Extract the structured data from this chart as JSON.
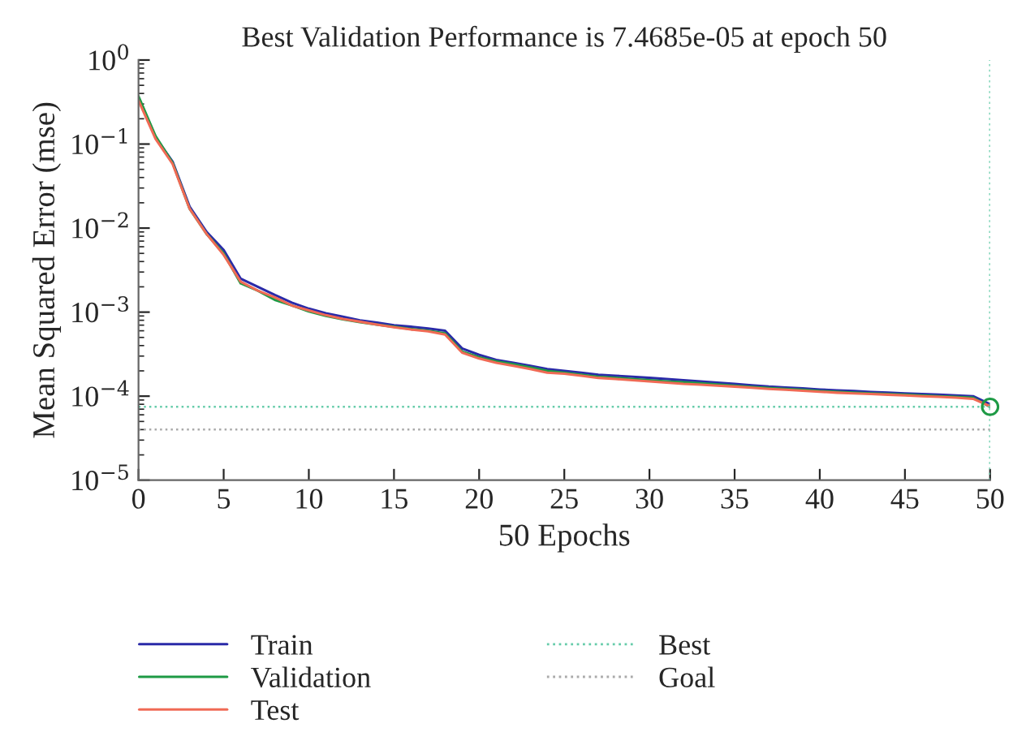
{
  "chart_data": {
    "type": "line",
    "title": "Best Validation Performance is 7.4685e-05 at epoch 50",
    "xlabel": "50 Epochs",
    "ylabel": "Mean Squared Error (mse)",
    "x": [
      0,
      1,
      2,
      3,
      4,
      5,
      6,
      7,
      8,
      9,
      10,
      11,
      12,
      13,
      14,
      15,
      16,
      17,
      18,
      19,
      20,
      21,
      22,
      23,
      24,
      25,
      26,
      27,
      28,
      29,
      30,
      31,
      32,
      33,
      34,
      35,
      36,
      37,
      38,
      39,
      40,
      41,
      42,
      43,
      44,
      45,
      46,
      47,
      48,
      49,
      50
    ],
    "series": [
      {
        "name": "Train",
        "color": "#2a2aa8",
        "values": [
          0.35,
          0.12,
          0.062,
          0.018,
          0.009,
          0.0055,
          0.0025,
          0.002,
          0.0016,
          0.0013,
          0.0011,
          0.00097,
          0.00088,
          0.0008,
          0.00075,
          0.0007,
          0.00067,
          0.00064,
          0.0006,
          0.00037,
          0.00031,
          0.00027,
          0.00025,
          0.00023,
          0.00021,
          0.0002,
          0.00019,
          0.00018,
          0.000175,
          0.00017,
          0.000165,
          0.00016,
          0.000155,
          0.00015,
          0.000145,
          0.00014,
          0.000135,
          0.00013,
          0.000127,
          0.000124,
          0.00012,
          0.000117,
          0.000115,
          0.000112,
          0.00011,
          0.000108,
          0.000106,
          0.000104,
          0.000102,
          0.0001,
          8e-05
        ]
      },
      {
        "name": "Validation",
        "color": "#1e9a45",
        "values": [
          0.37,
          0.125,
          0.06,
          0.017,
          0.0085,
          0.005,
          0.0022,
          0.0018,
          0.0014,
          0.0012,
          0.00102,
          0.0009,
          0.00082,
          0.00076,
          0.00071,
          0.00067,
          0.00063,
          0.0006,
          0.00056,
          0.00034,
          0.00029,
          0.00026,
          0.00024,
          0.00022,
          0.0002,
          0.00019,
          0.00018,
          0.00017,
          0.000165,
          0.00016,
          0.000155,
          0.00015,
          0.000146,
          0.000142,
          0.000138,
          0.000133,
          0.000129,
          0.000125,
          0.000122,
          0.000119,
          0.000115,
          0.000113,
          0.00011,
          0.000108,
          0.000106,
          0.000104,
          0.000102,
          0.0001,
          9.8e-05,
          9.6e-05,
          7.4685e-05
        ]
      },
      {
        "name": "Test",
        "color": "#f06a55",
        "values": [
          0.33,
          0.115,
          0.058,
          0.017,
          0.0085,
          0.0048,
          0.0023,
          0.0018,
          0.0015,
          0.0012,
          0.00105,
          0.00092,
          0.00083,
          0.00077,
          0.00071,
          0.00066,
          0.00062,
          0.00059,
          0.00054,
          0.00033,
          0.00028,
          0.00025,
          0.00023,
          0.00021,
          0.00019,
          0.000185,
          0.000175,
          0.000165,
          0.00016,
          0.000155,
          0.00015,
          0.000145,
          0.00014,
          0.000137,
          0.000133,
          0.00013,
          0.000126,
          0.000122,
          0.000119,
          0.000116,
          0.000113,
          0.00011,
          0.000108,
          0.000106,
          0.000104,
          0.000102,
          0.0001,
          9.8e-05,
          9.6e-05,
          9.3e-05,
          7.6e-05
        ]
      },
      {
        "type": "scatter",
        "color": "#1e9a45",
        "marker": "circle",
        "x": [
          50
        ],
        "values": [
          7.4685e-05
        ]
      }
    ],
    "ref_lines": [
      {
        "axis": "y",
        "value": 7.4685e-05,
        "label": "Best",
        "color": "#66ccaa",
        "line_style": "dotted"
      },
      {
        "axis": "x",
        "value": 50,
        "color": "#66ccaa",
        "line_style": "dotted"
      },
      {
        "axis": "y",
        "value": 4e-05,
        "label": "Goal",
        "color": "#aaaaaa",
        "line_style": "dotted"
      }
    ],
    "log": "y",
    "xlim": [
      0,
      50
    ],
    "xticks": [
      0,
      5,
      10,
      15,
      20,
      25,
      30,
      35,
      40,
      45,
      50
    ],
    "ylim": [
      1e-05,
      1
    ],
    "yticks": [
      {
        "value": 1e-05,
        "label": "10$^{−5}$"
      },
      {
        "value": 0.0001,
        "label": "10$^{−4}$"
      },
      {
        "value": 0.001,
        "label": "10$^{−3}$"
      },
      {
        "value": 0.01,
        "label": "10$^{−2}$"
      },
      {
        "value": 0.1,
        "label": "10$^{−1}$"
      },
      {
        "value": 1,
        "label": "10$^{0}$"
      }
    ],
    "grid": false,
    "legend": "bottom",
    "line_style": "solid"
  }
}
